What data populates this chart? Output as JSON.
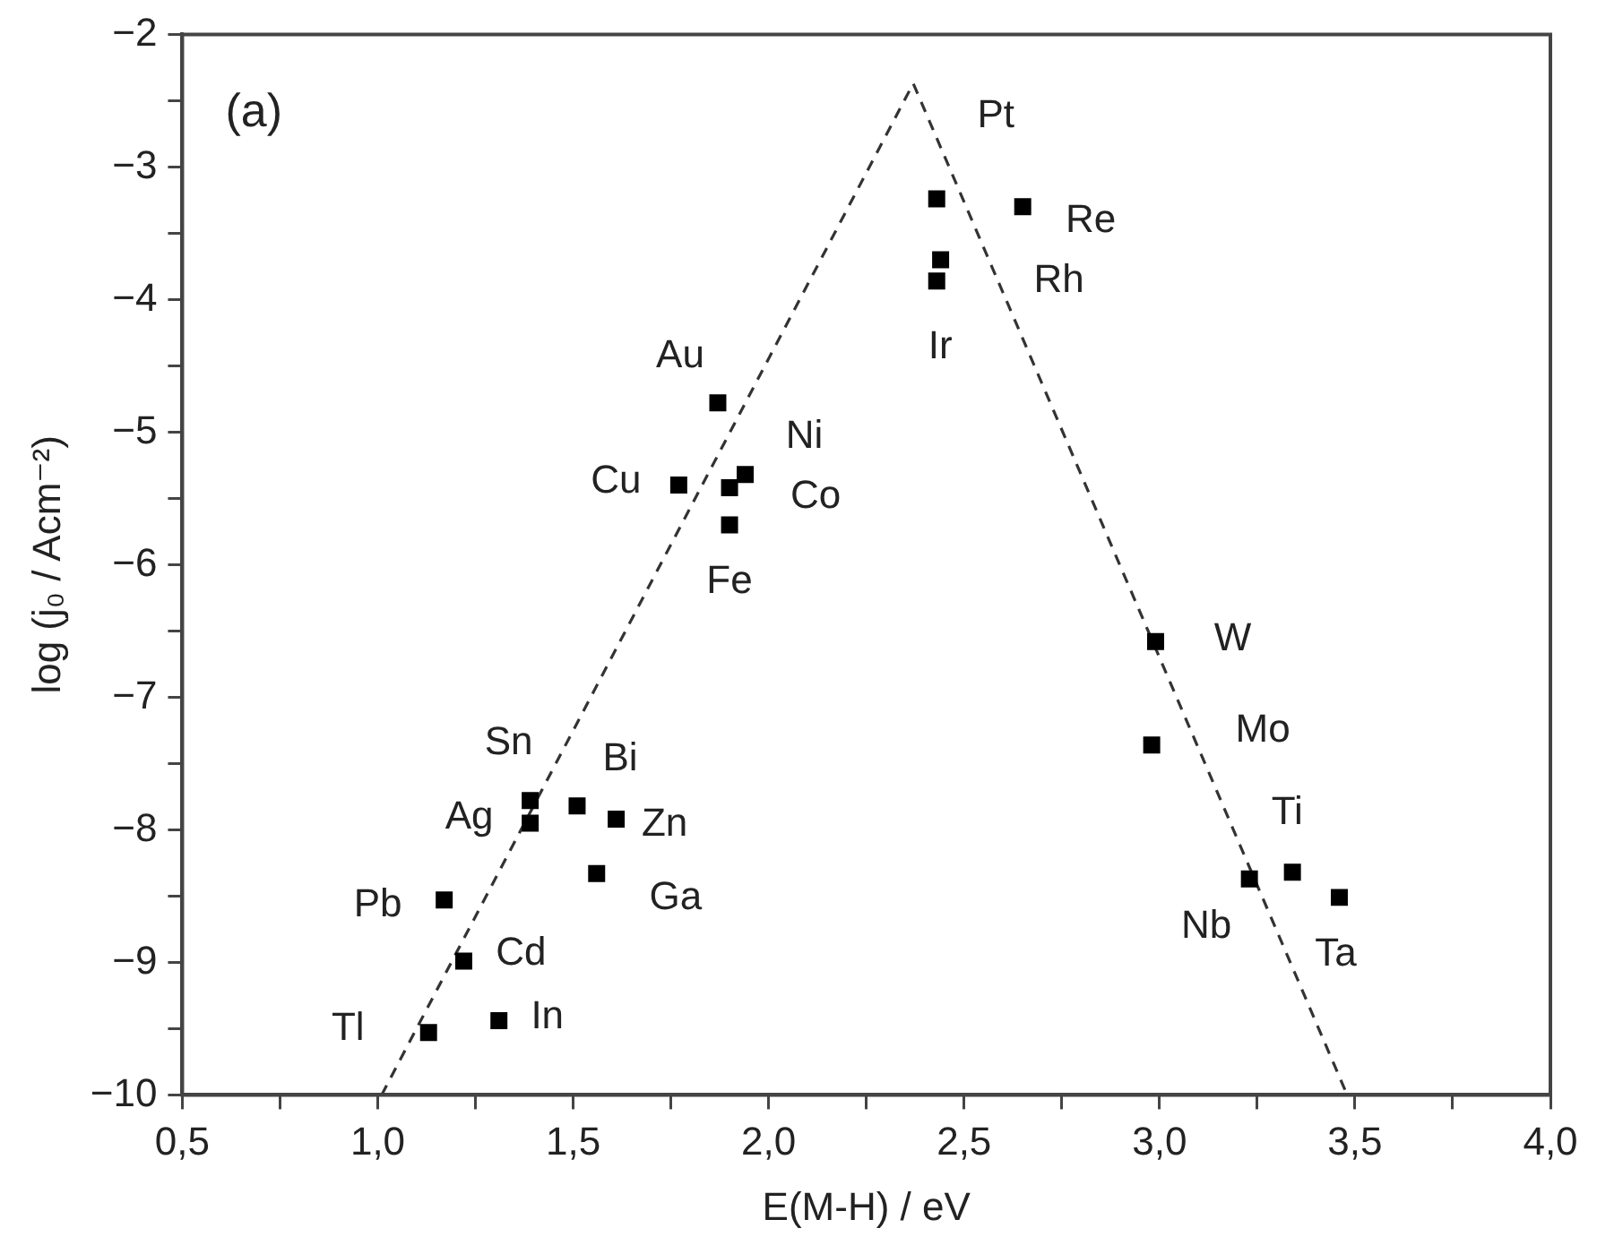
{
  "chart_data": {
    "type": "scatter",
    "xlabel": "E(M-H) / eV",
    "ylabel": "log (j₀ / Acm⁻²)",
    "xlim": [
      0.5,
      4.0
    ],
    "ylim": [
      -10,
      -2
    ],
    "xticks": [
      {
        "value": 0.5,
        "label": "0,5"
      },
      {
        "value": 0.75,
        "label": null
      },
      {
        "value": 1.0,
        "label": "1,0"
      },
      {
        "value": 1.25,
        "label": null
      },
      {
        "value": 1.5,
        "label": "1,5"
      },
      {
        "value": 1.75,
        "label": null
      },
      {
        "value": 2.0,
        "label": "2,0"
      },
      {
        "value": 2.25,
        "label": null
      },
      {
        "value": 2.5,
        "label": "2,5"
      },
      {
        "value": 2.75,
        "label": null
      },
      {
        "value": 3.0,
        "label": "3,0"
      },
      {
        "value": 3.25,
        "label": null
      },
      {
        "value": 3.5,
        "label": "3,5"
      },
      {
        "value": 3.75,
        "label": null
      },
      {
        "value": 4.0,
        "label": "4,0"
      }
    ],
    "yticks": [
      {
        "value": -10,
        "label": "−10"
      },
      {
        "value": -9.5,
        "label": null
      },
      {
        "value": -9,
        "label": "−9"
      },
      {
        "value": -8.5,
        "label": null
      },
      {
        "value": -8,
        "label": "−8"
      },
      {
        "value": -7.5,
        "label": null
      },
      {
        "value": -7,
        "label": "−7"
      },
      {
        "value": -6.5,
        "label": null
      },
      {
        "value": -6,
        "label": "−6"
      },
      {
        "value": -5.5,
        "label": null
      },
      {
        "value": -5,
        "label": "−5"
      },
      {
        "value": -4.5,
        "label": null
      },
      {
        "value": -4,
        "label": "−4"
      },
      {
        "value": -3.5,
        "label": null
      },
      {
        "value": -3,
        "label": "−3"
      },
      {
        "value": -2.5,
        "label": null
      },
      {
        "value": -2,
        "label": "−2"
      }
    ],
    "grid": false,
    "legend": false,
    "marker": "square",
    "series": [
      {
        "color": "#000000",
        "x": [
          1.13,
          1.31,
          1.22,
          1.17,
          1.56,
          1.39,
          1.39,
          1.51,
          1.61,
          1.87,
          1.77,
          1.94,
          1.9,
          1.9,
          2.43,
          2.65,
          2.44,
          2.43,
          2.99,
          2.98,
          3.23,
          3.34,
          3.46
        ],
        "values": [
          -9.53,
          -9.44,
          -8.99,
          -8.53,
          -8.33,
          -7.95,
          -7.78,
          -7.82,
          -7.92,
          -4.78,
          -5.4,
          -5.32,
          -5.42,
          -5.7,
          -3.24,
          -3.3,
          -3.7,
          -3.86,
          -6.58,
          -7.36,
          -8.37,
          -8.32,
          -8.51
        ]
      },
      {
        "type": "line",
        "color": "#333333",
        "line_style": "dashed",
        "marker": "none",
        "x": [
          1.01,
          2.37,
          3.48
        ],
        "values": [
          -10,
          -2.37,
          -10
        ]
      }
    ],
    "annotations": [
      "(a)",
      {
        "text": "Tl",
        "x": 1.13,
        "y": -9.53
      },
      {
        "text": "In",
        "x": 1.31,
        "y": -9.44
      },
      {
        "text": "Cd",
        "x": 1.22,
        "y": -8.99
      },
      {
        "text": "Pb",
        "x": 1.17,
        "y": -8.53
      },
      {
        "text": "Ga",
        "x": 1.56,
        "y": -8.33
      },
      {
        "text": "Ag",
        "x": 1.39,
        "y": -7.95
      },
      {
        "text": "Sn",
        "x": 1.39,
        "y": -7.78
      },
      {
        "text": "Bi",
        "x": 1.51,
        "y": -7.82
      },
      {
        "text": "Zn",
        "x": 1.61,
        "y": -7.92
      },
      {
        "text": "Au",
        "x": 1.87,
        "y": -4.78
      },
      {
        "text": "Cu",
        "x": 1.77,
        "y": -5.4
      },
      {
        "text": "Ni",
        "x": 1.94,
        "y": -5.32
      },
      {
        "text": "Co",
        "x": 1.9,
        "y": -5.42
      },
      {
        "text": "Fe",
        "x": 1.9,
        "y": -5.7
      },
      {
        "text": "Pt",
        "x": 2.43,
        "y": -3.24
      },
      {
        "text": "Re",
        "x": 2.65,
        "y": -3.3
      },
      {
        "text": "Rh",
        "x": 2.44,
        "y": -3.7
      },
      {
        "text": "Ir",
        "x": 2.43,
        "y": -3.86
      },
      {
        "text": "W",
        "x": 2.99,
        "y": -6.58
      },
      {
        "text": "Mo",
        "x": 2.98,
        "y": -7.36
      },
      {
        "text": "Nb",
        "x": 3.23,
        "y": -8.37
      },
      {
        "text": "Ti",
        "x": 3.34,
        "y": -8.32
      },
      {
        "text": "Ta",
        "x": 3.46,
        "y": -8.51
      }
    ]
  }
}
